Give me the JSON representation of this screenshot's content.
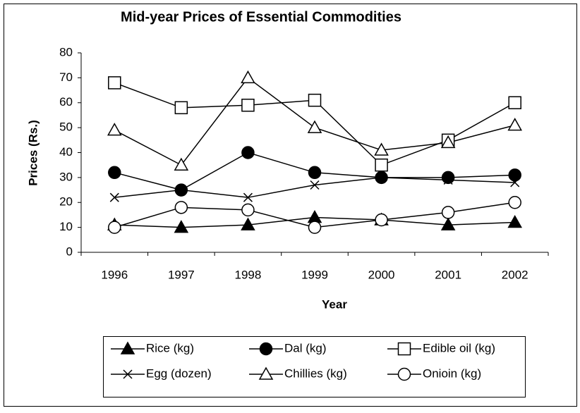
{
  "chart_data": {
    "type": "line",
    "title": "Mid-year Prices of Essential Commodities",
    "x_label": "Year",
    "y_label": "Prices (Rs.)",
    "categories": [
      "1996",
      "1997",
      "1998",
      "1999",
      "2000",
      "2001",
      "2002"
    ],
    "ylim": [
      0,
      80
    ],
    "yticks": [
      0,
      10,
      20,
      30,
      40,
      50,
      60,
      70,
      80
    ],
    "grid": false,
    "legend": "bottom",
    "series": [
      {
        "name": "Rice (kg)",
        "color": "#000000",
        "marker": "triangle",
        "filled": true,
        "values": [
          11,
          10,
          11,
          14,
          13,
          11,
          12
        ]
      },
      {
        "name": "Dal (kg)",
        "color": "#000000",
        "marker": "circle",
        "filled": true,
        "values": [
          32,
          25,
          40,
          32,
          30,
          30,
          31
        ]
      },
      {
        "name": "Edible oil (kg)",
        "color": "#000000",
        "marker": "square",
        "filled": false,
        "values": [
          68,
          58,
          59,
          61,
          35,
          45,
          60
        ]
      },
      {
        "name": "Egg (dozen)",
        "color": "#000000",
        "marker": "x",
        "filled": false,
        "values": [
          22,
          25,
          22,
          27,
          30,
          29,
          28
        ]
      },
      {
        "name": "Chillies (kg)",
        "color": "#000000",
        "marker": "triangle",
        "filled": false,
        "values": [
          49,
          35,
          70,
          50,
          41,
          44,
          51
        ]
      },
      {
        "name": "Onioin (kg)",
        "color": "#000000",
        "marker": "circle",
        "filled": false,
        "values": [
          10,
          18,
          17,
          10,
          13,
          16,
          20
        ]
      }
    ]
  }
}
